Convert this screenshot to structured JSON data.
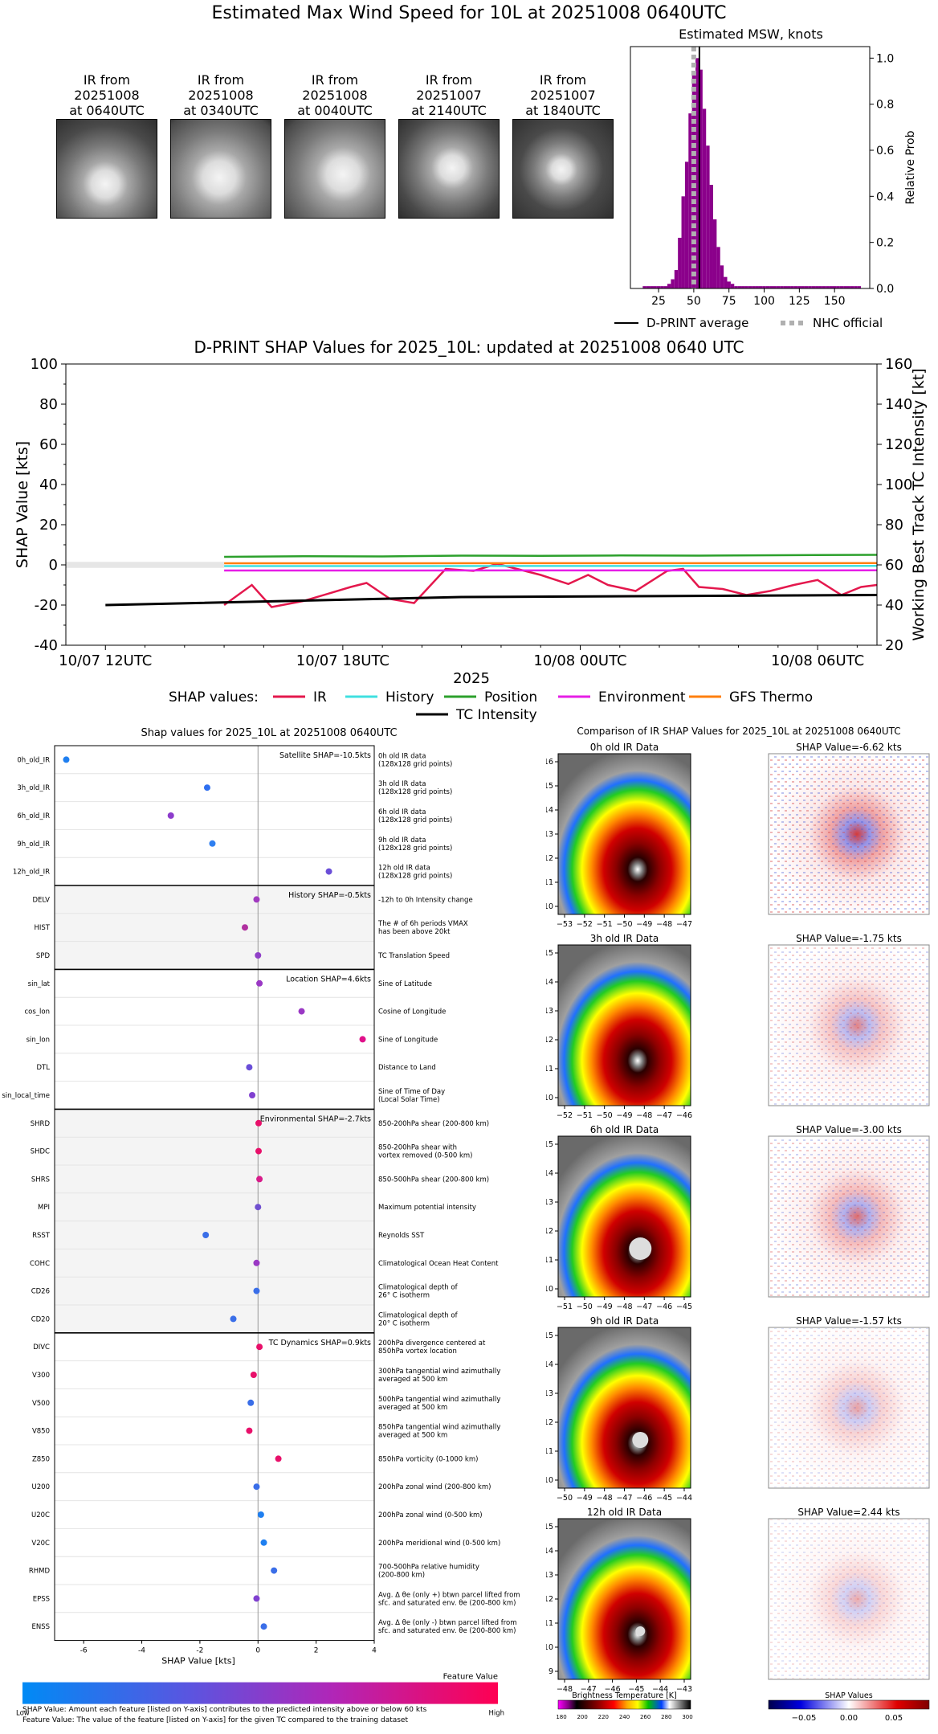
{
  "page": {
    "title": "Estimated Max Wind Speed for 10L at 20251008 0640UTC"
  },
  "ir_thumbnails": [
    {
      "label": "IR from\n20251008\nat 0640UTC",
      "l1": "IR from",
      "l2": "20251008",
      "l3": "at 0640UTC"
    },
    {
      "label": "IR from\n20251008\nat 0340UTC",
      "l1": "IR from",
      "l2": "20251008",
      "l3": "at 0340UTC"
    },
    {
      "label": "IR from\n20251008\nat 0040UTC",
      "l1": "IR from",
      "l2": "20251008",
      "l3": "at 0040UTC"
    },
    {
      "label": "IR from\n20251007\nat 2140UTC",
      "l1": "IR from",
      "l2": "20251007",
      "l3": "at 2140UTC"
    },
    {
      "label": "IR from\n20251007\nat 1840UTC",
      "l1": "IR from",
      "l2": "20251007",
      "l3": "at 1840UTC"
    }
  ],
  "chart_data": [
    {
      "type": "bar",
      "title": "Estimated MSW, knots",
      "ylabel": "Relative Prob",
      "xlim": [
        5,
        175
      ],
      "ylim": [
        0,
        1.05
      ],
      "xticks": [
        "25",
        "50",
        "75",
        "100",
        "125",
        "150"
      ],
      "yticks": [
        "0.0",
        "0.2",
        "0.4",
        "0.6",
        "0.8",
        "1.0"
      ],
      "bin_width": 2.5,
      "x": [
        15,
        17.5,
        20,
        22.5,
        25,
        27.5,
        30,
        32.5,
        35,
        37.5,
        40,
        42.5,
        45,
        47.5,
        50,
        52.5,
        55,
        57.5,
        60,
        62.5,
        65,
        67.5,
        70,
        72.5,
        75,
        77.5,
        80,
        82.5,
        85,
        87.5,
        90,
        92.5,
        95,
        97.5,
        100,
        102.5,
        105,
        107.5,
        110,
        112.5,
        115,
        117.5,
        120,
        122.5,
        125,
        127.5,
        130,
        132.5,
        135,
        137.5,
        140,
        142.5,
        145,
        147.5,
        150,
        152.5,
        155,
        157.5,
        160,
        162.5,
        165,
        167.5
      ],
      "values": [
        0.01,
        0.01,
        0.01,
        0.01,
        0.01,
        0.01,
        0.01,
        0.02,
        0.04,
        0.08,
        0.22,
        0.4,
        0.55,
        0.76,
        0.93,
        1.0,
        0.95,
        0.78,
        0.62,
        0.45,
        0.3,
        0.18,
        0.1,
        0.05,
        0.03,
        0.02,
        0.01,
        0.01,
        0.01,
        0.01,
        0.01,
        0.01,
        0.01,
        0.01,
        0.01,
        0.01,
        0.01,
        0.01,
        0.01,
        0.01,
        0.01,
        0.01,
        0.01,
        0.01,
        0.01,
        0.01,
        0.01,
        0.01,
        0.01,
        0.01,
        0.01,
        0.01,
        0.01,
        0.01,
        0.01,
        0.01,
        0.01,
        0.01,
        0.01,
        0.01,
        0.01,
        0.01
      ],
      "bar_color": "#8b008b",
      "dprint_average": 54,
      "nhc_official": 50,
      "legend": [
        "D-PRINT average",
        "NHC official"
      ]
    },
    {
      "type": "line",
      "title": "D-PRINT SHAP Values for 2025_10L: updated at 20251008 0640 UTC",
      "xlabel": "2025",
      "ylabel": "SHAP Value [kts]",
      "ylabel_right": "Working Best Track TC Intensity [kt]",
      "ylim": [
        -40,
        100
      ],
      "ylim_right": [
        20,
        160
      ],
      "yticks": [
        "-40",
        "-20",
        "0",
        "20",
        "40",
        "60",
        "80",
        "100"
      ],
      "yticks_right": [
        "20",
        "40",
        "60",
        "80",
        "100",
        "120",
        "140",
        "160"
      ],
      "xlim_hours": [
        -1,
        19.5
      ],
      "xtick_hours": [
        0,
        6,
        12,
        18
      ],
      "xticks": [
        "10/07 12UTC",
        "10/07 18UTC",
        "10/08 00UTC",
        "10/08 06UTC"
      ],
      "legend_title": "SHAP values:",
      "series": [
        {
          "name": "IR",
          "color": "#e4184d",
          "x": [
            3,
            3.7,
            4.2,
            5,
            5.6,
            6.2,
            6.6,
            7.2,
            7.8,
            8.6,
            9.3,
            9.9,
            10.4,
            11,
            11.7,
            12.2,
            12.7,
            13.4,
            14.2,
            14.6,
            15,
            15.6,
            16.2,
            16.8,
            17.4,
            18,
            18.6,
            19.1,
            19.5
          ],
          "y": [
            -20,
            -10,
            -21,
            -18,
            -14.5,
            -11,
            -9,
            -17,
            -19,
            -2,
            -3,
            0.5,
            -2,
            -5,
            -9.5,
            -5,
            -10,
            -13,
            -3,
            -2,
            -11,
            -12,
            -15,
            -13,
            -10,
            -7.5,
            -15,
            -11,
            -10
          ]
        },
        {
          "name": "History",
          "color": "#3fe0e0",
          "x": [
            3,
            19.5
          ],
          "y": [
            -0.6,
            -0.5
          ]
        },
        {
          "name": "Position",
          "color": "#2ca02c",
          "x": [
            3,
            5,
            7,
            9,
            11,
            13,
            15,
            17,
            19.5
          ],
          "y": [
            4,
            4.3,
            4.2,
            4.6,
            4.5,
            4.7,
            4.6,
            4.8,
            5
          ]
        },
        {
          "name": "Environment",
          "color": "#e61ee6",
          "x": [
            3,
            19.5
          ],
          "y": [
            -2.8,
            -2.7
          ]
        },
        {
          "name": "GFS Thermo",
          "color": "#ff7f0e",
          "x": [
            3,
            19.5
          ],
          "y": [
            0.8,
            0.9
          ]
        },
        {
          "name": "TC Intensity",
          "color": "#000000",
          "axis": "right",
          "x": [
            0,
            9,
            19.5
          ],
          "y": [
            40,
            44,
            45
          ]
        }
      ]
    },
    {
      "type": "scatter",
      "title": "Shap values for 2025_10L at 20251008 0640UTC",
      "xlabel": "SHAP Value [kts]",
      "xlim": [
        -7,
        4
      ],
      "xticks": [
        "-6",
        "-4",
        "-2",
        "0",
        "2",
        "4"
      ],
      "xtick_values": [
        -6,
        -4,
        -2,
        0,
        2,
        4
      ],
      "groups": [
        {
          "label": "Satellite SHAP=-10.5kts",
          "shaded": false,
          "start": 0,
          "count": 5
        },
        {
          "label": "History SHAP=-0.5kts",
          "shaded": true,
          "start": 5,
          "count": 3
        },
        {
          "label": "Location SHAP=4.6kts",
          "shaded": false,
          "start": 8,
          "count": 5
        },
        {
          "label": "Environmental SHAP=-2.7kts",
          "shaded": true,
          "start": 13,
          "count": 8
        },
        {
          "label": "TC Dynamics SHAP=0.9kts",
          "shaded": false,
          "start": 21,
          "count": 11
        }
      ],
      "features": [
        {
          "name": "0h_old_IR",
          "value": -6.6,
          "color": "#1f7ff0",
          "desc1": "0h old IR data",
          "desc2": "(128x128 grid points)"
        },
        {
          "name": "3h_old_IR",
          "value": -1.75,
          "color": "#2f6ff0",
          "desc1": "3h old IR data",
          "desc2": "(128x128 grid points)"
        },
        {
          "name": "6h_old_IR",
          "value": -3.0,
          "color": "#8d3ccc",
          "desc1": "6h old IR data",
          "desc2": "(128x128 grid points)"
        },
        {
          "name": "9h_old_IR",
          "value": -1.57,
          "color": "#2f7ff0",
          "desc1": "9h old IR data",
          "desc2": "(128x128 grid points)"
        },
        {
          "name": "12h_old_IR",
          "value": 2.44,
          "color": "#6a4ed8",
          "desc1": "12h old IR data",
          "desc2": "(128x128 grid points)"
        },
        {
          "name": "DELV",
          "value": -0.05,
          "color": "#a13ac0",
          "desc1": "-12h to 0h Intensity change",
          "desc2": ""
        },
        {
          "name": "HIST",
          "value": -0.45,
          "color": "#b0309f",
          "desc1": "The # of 6h periods VMAX",
          "desc2": "has been above 20kt"
        },
        {
          "name": "SPD",
          "value": 0.0,
          "color": "#9040c8",
          "desc1": "TC Translation Speed",
          "desc2": ""
        },
        {
          "name": "sin_lat",
          "value": 0.05,
          "color": "#9a38c4",
          "desc1": "Sine of Latitude",
          "desc2": ""
        },
        {
          "name": "cos_lon",
          "value": 1.5,
          "color": "#9a38c4",
          "desc1": "Cosine of Longitude",
          "desc2": ""
        },
        {
          "name": "sin_lon",
          "value": 3.6,
          "color": "#e0108a",
          "desc1": "Sine of Longitude",
          "desc2": ""
        },
        {
          "name": "DTL",
          "value": -0.3,
          "color": "#6a4ed8",
          "desc1": "Distance to Land",
          "desc2": ""
        },
        {
          "name": "sin_local_time",
          "value": -0.2,
          "color": "#8040d0",
          "desc1": "Sine of Time of Day",
          "desc2": "(Local Solar Time)"
        },
        {
          "name": "SHRD",
          "value": 0.02,
          "color": "#e8106a",
          "desc1": "850-200hPa shear (200-800 km)",
          "desc2": ""
        },
        {
          "name": "SHDC",
          "value": 0.02,
          "color": "#e8106a",
          "desc1": "850-200hPa shear with",
          "desc2": "vortex removed (0-500 km)"
        },
        {
          "name": "SHRS",
          "value": 0.05,
          "color": "#d81c8a",
          "desc1": "850-500hPa shear (200-800 km)",
          "desc2": ""
        },
        {
          "name": "MPI",
          "value": 0.0,
          "color": "#7050d0",
          "desc1": "Maximum potential intensity",
          "desc2": ""
        },
        {
          "name": "RSST",
          "value": -1.8,
          "color": "#3a6ee8",
          "desc1": "Reynolds SST",
          "desc2": ""
        },
        {
          "name": "COHC",
          "value": -0.05,
          "color": "#9a38c4",
          "desc1": "Climatological Ocean Heat Content",
          "desc2": ""
        },
        {
          "name": "CD26",
          "value": -0.05,
          "color": "#3a6ee8",
          "desc1": "Climatological depth of",
          "desc2": "26° C isotherm"
        },
        {
          "name": "CD20",
          "value": -0.85,
          "color": "#3a6ee8",
          "desc1": "Climatological depth of",
          "desc2": "20° C isotherm"
        },
        {
          "name": "DIVC",
          "value": 0.05,
          "color": "#e8106a",
          "desc1": "200hPa divergence centered at",
          "desc2": "850hPa vortex location"
        },
        {
          "name": "V300",
          "value": -0.15,
          "color": "#e8106a",
          "desc1": "300hPa tangential wind azimuthally",
          "desc2": "averaged at 500 km"
        },
        {
          "name": "V500",
          "value": -0.25,
          "color": "#3a6ee8",
          "desc1": "500hPa tangential wind azimuthally",
          "desc2": "averaged at 500 km"
        },
        {
          "name": "V850",
          "value": -0.3,
          "color": "#e8106a",
          "desc1": "850hPa tangential wind azimuthally",
          "desc2": "averaged at 500 km"
        },
        {
          "name": "Z850",
          "value": 0.7,
          "color": "#e8106a",
          "desc1": "850hPa vorticity (0-1000 km)",
          "desc2": ""
        },
        {
          "name": "U200",
          "value": -0.05,
          "color": "#3a6ee8",
          "desc1": "200hPa zonal wind (200-800 km)",
          "desc2": ""
        },
        {
          "name": "U20C",
          "value": 0.1,
          "color": "#1f7ff0",
          "desc1": "200hPa zonal wind (0-500 km)",
          "desc2": ""
        },
        {
          "name": "V20C",
          "value": 0.2,
          "color": "#1f7ff0",
          "desc1": "200hPa meridional wind (0-500 km)",
          "desc2": ""
        },
        {
          "name": "RHMD",
          "value": 0.55,
          "color": "#3a6ee8",
          "desc1": "700-500hPa relative humidity",
          "desc2": "(200-800 km)"
        },
        {
          "name": "EPSS",
          "value": -0.05,
          "color": "#8040d0",
          "desc1": "Avg. Δ θe (only +) btwn parcel lifted from",
          "desc2": "sfc. and saturated env. θe (200-800 km)"
        },
        {
          "name": "ENSS",
          "value": 0.2,
          "color": "#3a6ee8",
          "desc1": "Avg. Δ θe (only -) btwn parcel lifted from",
          "desc2": "sfc. and saturated env. θe (200-800 km)"
        }
      ],
      "colorbar": {
        "title": "Feature Value",
        "low": "Low",
        "high": "High"
      }
    }
  ],
  "shap_footer": {
    "line1": "SHAP Value: Amount each feature [listed on Y-axis] contributes to the predicted intensity above or below 60 kts",
    "line2": "Feature Value: The value of the feature [listed on Y-axis] for the given TC compared to the training dataset"
  },
  "ir_comparison": {
    "title": "Comparison of IR SHAP Values for 2025_10L at 20251008 0640UTC",
    "rows": [
      {
        "ir_title": "0h old IR Data",
        "shap_title": "SHAP Value=-6.62 kts",
        "xticks": [
          "−53",
          "−52",
          "−51",
          "−50",
          "−49",
          "−48",
          "−47"
        ],
        "yticks": [
          "10",
          "11",
          "12",
          "13",
          "14",
          "15",
          "16"
        ]
      },
      {
        "ir_title": "3h old IR Data",
        "shap_title": "SHAP Value=-1.75 kts",
        "xticks": [
          "−52",
          "−51",
          "−50",
          "−49",
          "−48",
          "−47",
          "−46"
        ],
        "yticks": [
          "10",
          "11",
          "12",
          "13",
          "14",
          "15"
        ]
      },
      {
        "ir_title": "6h old IR Data",
        "shap_title": "SHAP Value=-3.00 kts",
        "xticks": [
          "−51",
          "−50",
          "−49",
          "−48",
          "−47",
          "−46",
          "−45"
        ],
        "yticks": [
          "10",
          "11",
          "12",
          "13",
          "14",
          "15"
        ]
      },
      {
        "ir_title": "9h old IR Data",
        "shap_title": "SHAP Value=-1.57 kts",
        "xticks": [
          "−50",
          "−49",
          "−48",
          "−47",
          "−46",
          "−45",
          "−44"
        ],
        "yticks": [
          "10",
          "11",
          "12",
          "13",
          "14",
          "15"
        ]
      },
      {
        "ir_title": "12h old IR Data",
        "shap_title": "SHAP Value=2.44 kts",
        "xticks": [
          "−48",
          "−47",
          "−46",
          "−45",
          "−44",
          "−43"
        ],
        "yticks": [
          "9",
          "10",
          "11",
          "12",
          "13",
          "14",
          "15"
        ]
      }
    ],
    "bt_colorbar_title": "Brightness Temperature [K]",
    "bt_ticks": [
      "180",
      "200",
      "220",
      "240",
      "260",
      "280",
      "300"
    ],
    "shap_colorbar_title": "SHAP Values",
    "shap_ticks": [
      "−0.05",
      "0.00",
      "0.05"
    ]
  }
}
